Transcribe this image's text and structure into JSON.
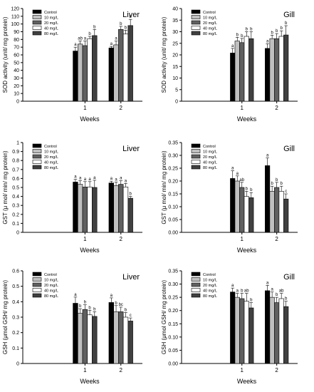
{
  "legend": [
    "Control",
    "10 mg/L",
    "20 mg/L",
    "40 mg/L",
    "80 mg/L"
  ],
  "series_colors": [
    "#000000",
    "#c0c0c0",
    "#606060",
    "#ffffff",
    "#404040"
  ],
  "chart_data": [
    {
      "type": "bar",
      "title": "Liver",
      "xlabel": "Weeks",
      "ylabel": "SOD activity (unit/ mg protein)",
      "categories": [
        "1",
        "2"
      ],
      "ylim": [
        0,
        120
      ],
      "yticks": [
        0,
        10,
        20,
        30,
        40,
        50,
        60,
        70,
        80,
        90,
        100,
        110,
        120
      ],
      "legend_position": "top-left",
      "series": [
        {
          "name": "Control",
          "values": [
            65,
            69
          ],
          "errors": [
            5,
            2
          ],
          "letters": [
            "a",
            "a"
          ]
        },
        {
          "name": "10 mg/L",
          "values": [
            74,
            73
          ],
          "errors": [
            4,
            5
          ],
          "letters": [
            "ab",
            "a"
          ]
        },
        {
          "name": "20 mg/L",
          "values": [
            72,
            93
          ],
          "errors": [
            6,
            4
          ],
          "letters": [
            "a",
            "b"
          ]
        },
        {
          "name": "40 mg/L",
          "values": [
            81,
            87
          ],
          "errors": [
            3,
            5
          ],
          "letters": [
            "b",
            "b"
          ]
        },
        {
          "name": "80 mg/L",
          "values": [
            85,
            98
          ],
          "errors": [
            8,
            8
          ],
          "letters": [
            "b",
            "b"
          ]
        }
      ]
    },
    {
      "type": "bar",
      "title": "Gill",
      "xlabel": "Weeks",
      "ylabel": "SOD activity (unit/ mg protein)",
      "categories": [
        "1",
        "2"
      ],
      "ylim": [
        0,
        40
      ],
      "yticks": [
        0,
        5,
        10,
        15,
        20,
        25,
        30,
        35,
        40
      ],
      "legend_position": "top-left",
      "series": [
        {
          "name": "Control",
          "values": [
            20.8,
            22.8
          ],
          "errors": [
            2,
            2
          ],
          "letters": [
            "a",
            "a"
          ]
        },
        {
          "name": "10 mg/L",
          "values": [
            26,
            27
          ],
          "errors": [
            1.6,
            1.5
          ],
          "letters": [
            "b",
            "b"
          ]
        },
        {
          "name": "20 mg/L",
          "values": [
            25.3,
            27
          ],
          "errors": [
            1.8,
            2.2
          ],
          "letters": [
            "b",
            "b"
          ]
        },
        {
          "name": "40 mg/L",
          "values": [
            28,
            28
          ],
          "errors": [
            2,
            2.4
          ],
          "letters": [
            "b",
            "b"
          ]
        },
        {
          "name": "80 mg/L",
          "values": [
            27,
            28.6
          ],
          "errors": [
            3,
            4
          ],
          "letters": [
            "b",
            "b"
          ]
        }
      ]
    },
    {
      "type": "bar",
      "title": "Liver",
      "xlabel": "Weeks",
      "ylabel": "GST (μ mol/ min/ mg protein)",
      "categories": [
        "1",
        "2"
      ],
      "ylim": [
        0,
        1.0
      ],
      "yticks": [
        0.0,
        0.1,
        0.2,
        0.3,
        0.4,
        0.5,
        0.6,
        0.7,
        0.8,
        0.9,
        1.0
      ],
      "legend_position": "top-left",
      "series": [
        {
          "name": "Control",
          "values": [
            0.56,
            0.55
          ],
          "errors": [
            0.03,
            0.02
          ],
          "letters": [
            "a",
            "a"
          ]
        },
        {
          "name": "10 mg/L",
          "values": [
            0.535,
            0.52
          ],
          "errors": [
            0.04,
            0.04
          ],
          "letters": [
            "a",
            "a"
          ]
        },
        {
          "name": "20 mg/L",
          "values": [
            0.505,
            0.535
          ],
          "errors": [
            0.06,
            0.04
          ],
          "letters": [
            "a",
            "a"
          ]
        },
        {
          "name": "40 mg/L",
          "values": [
            0.505,
            0.505
          ],
          "errors": [
            0.06,
            0.04
          ],
          "letters": [
            "a",
            "a"
          ]
        },
        {
          "name": "80 mg/L",
          "values": [
            0.5,
            0.38
          ],
          "errors": [
            0.08,
            0.02
          ],
          "letters": [
            "a",
            "b"
          ]
        }
      ]
    },
    {
      "type": "bar",
      "title": "Gill",
      "xlabel": "Weeks",
      "ylabel": "GST (μ mol/ min/ mg protein)",
      "categories": [
        "1",
        "2"
      ],
      "ylim": [
        0,
        0.35
      ],
      "yticks": [
        0.0,
        0.05,
        0.1,
        0.15,
        0.2,
        0.25,
        0.3,
        0.35
      ],
      "tick_labels": [
        "0.00",
        "0.05",
        "0.10",
        "0.15",
        "0.20",
        "0.25",
        "0.30",
        "0.35"
      ],
      "legend_position": "top-left",
      "series": [
        {
          "name": "Control",
          "values": [
            0.21,
            0.26
          ],
          "errors": [
            0.03,
            0.03
          ],
          "letters": [
            "a",
            "a"
          ]
        },
        {
          "name": "10 mg/L",
          "values": [
            0.2,
            0.16
          ],
          "errors": [
            0.02,
            0.02
          ],
          "letters": [
            "a",
            "b"
          ]
        },
        {
          "name": "20 mg/L",
          "values": [
            0.175,
            0.175
          ],
          "errors": [
            0.02,
            0.02
          ],
          "letters": [
            "ab",
            "b"
          ]
        },
        {
          "name": "40 mg/L",
          "values": [
            0.14,
            0.16
          ],
          "errors": [
            0.02,
            0.02
          ],
          "letters": [
            "b",
            "b"
          ]
        },
        {
          "name": "80 mg/L",
          "values": [
            0.135,
            0.13
          ],
          "errors": [
            0.02,
            0.02
          ],
          "letters": [
            "b",
            "c"
          ]
        }
      ]
    },
    {
      "type": "bar",
      "title": "Liver",
      "xlabel": "Weeks",
      "ylabel": "GSH (μmol GSH/ mg protein)",
      "categories": [
        "1",
        "2"
      ],
      "ylim": [
        0,
        0.6
      ],
      "yticks": [
        0.0,
        0.1,
        0.2,
        0.3,
        0.4,
        0.5,
        0.6
      ],
      "legend_position": "top-left",
      "series": [
        {
          "name": "Control",
          "values": [
            0.39,
            0.395
          ],
          "errors": [
            0.04,
            0.03
          ],
          "letters": [
            "a",
            "a"
          ]
        },
        {
          "name": "10 mg/L",
          "values": [
            0.325,
            0.335
          ],
          "errors": [
            0.03,
            0.04
          ],
          "letters": [
            "b",
            "b"
          ]
        },
        {
          "name": "20 mg/L",
          "values": [
            0.35,
            0.335
          ],
          "errors": [
            0.03,
            0.03
          ],
          "letters": [
            "b",
            "bc"
          ]
        },
        {
          "name": "40 mg/L",
          "values": [
            0.315,
            0.3
          ],
          "errors": [
            0.03,
            0.03
          ],
          "letters": [
            "b",
            "b"
          ]
        },
        {
          "name": "80 mg/L",
          "values": [
            0.305,
            0.275
          ],
          "errors": [
            0.03,
            0.02
          ],
          "letters": [
            "b",
            "c"
          ]
        }
      ]
    },
    {
      "type": "bar",
      "title": "Gill",
      "xlabel": "Weeks",
      "ylabel": "GSH (μmol GSH/ mg protein)",
      "categories": [
        "1",
        "2"
      ],
      "ylim": [
        0,
        0.35
      ],
      "yticks": [
        0.0,
        0.05,
        0.1,
        0.15,
        0.2,
        0.25,
        0.3,
        0.35
      ],
      "tick_labels": [
        "0.00",
        "0.05",
        "0.10",
        "0.15",
        "0.20",
        "0.25",
        "0.30",
        "0.35"
      ],
      "legend_position": "top-left",
      "series": [
        {
          "name": "Control",
          "values": [
            0.27,
            0.275
          ],
          "errors": [
            0.015,
            0.02
          ],
          "letters": [
            "a",
            "a"
          ]
        },
        {
          "name": "10 mg/L",
          "values": [
            0.25,
            0.25
          ],
          "errors": [
            0.015,
            0.02
          ],
          "letters": [
            "a",
            "a"
          ]
        },
        {
          "name": "20 mg/L",
          "values": [
            0.245,
            0.23
          ],
          "errors": [
            0.02,
            0.02
          ],
          "letters": [
            "b",
            "b"
          ]
        },
        {
          "name": "40 mg/L",
          "values": [
            0.235,
            0.245
          ],
          "errors": [
            0.03,
            0.02
          ],
          "letters": [
            "ab",
            "ab"
          ]
        },
        {
          "name": "80 mg/L",
          "values": [
            0.21,
            0.215
          ],
          "errors": [
            0.02,
            0.02
          ],
          "letters": [
            "b",
            "b"
          ]
        }
      ]
    }
  ]
}
